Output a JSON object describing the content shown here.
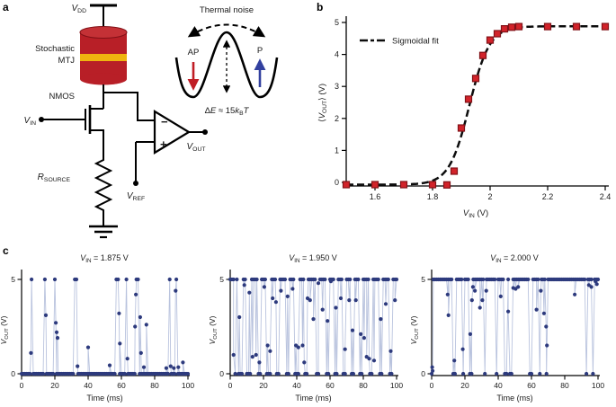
{
  "figure": {
    "panel_letters": {
      "a": "a",
      "b": "b",
      "c": "c"
    }
  },
  "panel_a": {
    "labels": {
      "vdd": {
        "main": "V",
        "sub": "DD"
      },
      "mtj_line1": "Stochastic",
      "mtj_line2": "MTJ",
      "nmos": "NMOS",
      "vin": {
        "main": "V",
        "sub": "IN"
      },
      "rsource": {
        "main": "R",
        "sub": "SOURCE"
      },
      "vref": {
        "main": "V",
        "sub": "REF"
      },
      "vout": {
        "main": "V",
        "sub": "OUT"
      },
      "comparator_minus": "−",
      "comparator_plus": "+"
    },
    "inset": {
      "title": "Thermal noise",
      "left_state": "AP",
      "right_state": "P",
      "barrier_delta": "Δ",
      "barrier_e": "E",
      "barrier_mid": " ≈ 15",
      "barrier_k": "k",
      "barrier_k_sub": "B",
      "barrier_t": "T"
    },
    "colors": {
      "mtj_red": "#b81f27",
      "mtj_red_top": "#c43136",
      "mtj_edge": "#801016",
      "mtj_gold": "#efb50f",
      "label_red": "#e11b22",
      "ap_arrow": "#c01d25",
      "p_arrow": "#32409f"
    }
  },
  "chart_data": [
    {
      "panel": "b",
      "type": "scatter",
      "xlabel_parts": [
        {
          "t": "V",
          "i": true
        },
        {
          "t": "IN",
          "sub": true
        },
        {
          "t": " (V)"
        }
      ],
      "ylabel_parts": [
        {
          "t": "⟨"
        },
        {
          "t": "V",
          "i": true
        },
        {
          "t": "OUT",
          "sub": true
        },
        {
          "t": "⟩ (V)"
        }
      ],
      "legend": "Sigmoidal fit",
      "xlim": [
        1.5,
        2.4
      ],
      "ylim": [
        -0.3,
        5.4
      ],
      "xticks": [
        1.6,
        1.8,
        2.0,
        2.2,
        2.4
      ],
      "xtick_labels": [
        "1.6",
        "1.8",
        "2",
        "2.2",
        "2.4"
      ],
      "yticks": [
        0,
        1,
        2,
        3,
        4,
        5
      ],
      "x": [
        1.5,
        1.6,
        1.7,
        1.8,
        1.85,
        1.875,
        1.9,
        1.925,
        1.95,
        1.975,
        2.0,
        2.025,
        2.05,
        2.075,
        2.1,
        2.2,
        2.3,
        2.4
      ],
      "y": [
        -0.07,
        -0.07,
        -0.07,
        -0.07,
        -0.08,
        0.35,
        1.7,
        2.6,
        3.25,
        3.97,
        4.45,
        4.65,
        4.8,
        4.85,
        4.87,
        4.87,
        4.87,
        4.87
      ],
      "fit": {
        "baseline": -0.07,
        "amplitude": 4.95,
        "x0": 1.928,
        "width": 0.035
      },
      "marker_color": "#d2232a",
      "marker_edge": "#811117",
      "fit_color": "#0d0d0d"
    },
    {
      "panel": "c1",
      "type": "line",
      "title_parts": [
        {
          "t": "V",
          "i": true
        },
        {
          "t": "IN",
          "sub": true
        },
        {
          "t": " = 1.875 V"
        }
      ],
      "xlabel": "Time (ms)",
      "ylabel_parts": [
        {
          "t": "V",
          "i": true
        },
        {
          "t": "OUT",
          "sub": true
        },
        {
          "t": " (V)"
        }
      ],
      "xlim": [
        0,
        100
      ],
      "ylim": [
        0,
        5
      ],
      "xticks": [
        0,
        20,
        40,
        60,
        80,
        100
      ],
      "yticks": [
        0,
        5
      ],
      "levels": [
        0,
        5
      ],
      "sample_interval_ms": 1,
      "intervals": [
        [
          0,
          6,
          0
        ],
        [
          6,
          7,
          5
        ],
        [
          7,
          13.5,
          0
        ],
        [
          13.5,
          14.5,
          5
        ],
        [
          14.5,
          19.5,
          0
        ],
        [
          19.5,
          20.5,
          5
        ],
        [
          20.5,
          32,
          0
        ],
        [
          32,
          33.5,
          5
        ],
        [
          33.5,
          57,
          0
        ],
        [
          57,
          58.5,
          5
        ],
        [
          58.5,
          62.5,
          0
        ],
        [
          62.5,
          63.5,
          5
        ],
        [
          63.5,
          68.5,
          0
        ],
        [
          68.5,
          71,
          5
        ],
        [
          71,
          89,
          0
        ],
        [
          89,
          90,
          5
        ],
        [
          90,
          93,
          0
        ],
        [
          93,
          93.8,
          5
        ],
        [
          93.8,
          100,
          0
        ]
      ],
      "extra_points": [
        [
          5.6,
          1.1
        ],
        [
          14.6,
          3.1
        ],
        [
          20.6,
          2.7
        ],
        [
          21.1,
          2.2
        ],
        [
          21.6,
          1.9
        ],
        [
          33.6,
          0.4
        ],
        [
          40,
          1.4
        ],
        [
          53,
          0.45
        ],
        [
          58.6,
          3.2
        ],
        [
          59.1,
          1.6
        ],
        [
          63.6,
          0.8
        ],
        [
          68.2,
          2.5
        ],
        [
          68.7,
          4.2
        ],
        [
          71.3,
          3.0
        ],
        [
          71.8,
          1.1
        ],
        [
          73.5,
          0.35
        ],
        [
          75,
          2.6
        ],
        [
          87,
          0.3
        ],
        [
          89.6,
          0.4
        ],
        [
          91.5,
          0.3
        ],
        [
          92.6,
          4.4
        ],
        [
          94.2,
          0.35
        ],
        [
          97,
          0.6
        ]
      ],
      "dot_color": "#2d3a7d",
      "line_color": "#b9c3de"
    },
    {
      "panel": "c2",
      "type": "line",
      "title_parts": [
        {
          "t": "V",
          "i": true
        },
        {
          "t": "IN",
          "sub": true
        },
        {
          "t": " = 1.950 V"
        }
      ],
      "xlabel": "Time (ms)",
      "ylabel_parts": [
        {
          "t": "V",
          "i": true
        },
        {
          "t": "OUT",
          "sub": true
        },
        {
          "t": " (V)"
        }
      ],
      "xlim": [
        0,
        100
      ],
      "ylim": [
        0,
        5
      ],
      "xticks": [
        0,
        20,
        40,
        60,
        80,
        100
      ],
      "yticks": [
        0,
        5
      ],
      "levels": [
        0,
        5
      ],
      "sample_interval_ms": 1,
      "intervals": [
        [
          0,
          3,
          5
        ],
        [
          3,
          4,
          0
        ],
        [
          4,
          5,
          5
        ],
        [
          5,
          8,
          0
        ],
        [
          8,
          10,
          5
        ],
        [
          10,
          13,
          0
        ],
        [
          13,
          17,
          5
        ],
        [
          17,
          19,
          0
        ],
        [
          19,
          22,
          5
        ],
        [
          22,
          25,
          0
        ],
        [
          25,
          28,
          5
        ],
        [
          28,
          30,
          0
        ],
        [
          30,
          34,
          5
        ],
        [
          34,
          36,
          0
        ],
        [
          36,
          39,
          5
        ],
        [
          39,
          42,
          0
        ],
        [
          42,
          45,
          5
        ],
        [
          45,
          47,
          0
        ],
        [
          47,
          52,
          5
        ],
        [
          52,
          54,
          0
        ],
        [
          54,
          58,
          5
        ],
        [
          58,
          60,
          0
        ],
        [
          60,
          63,
          5
        ],
        [
          63,
          65,
          0
        ],
        [
          65,
          68,
          5
        ],
        [
          68,
          70,
          0
        ],
        [
          70,
          73,
          5
        ],
        [
          73,
          75,
          0
        ],
        [
          75,
          78,
          5
        ],
        [
          78,
          80,
          0
        ],
        [
          80,
          84,
          5
        ],
        [
          84,
          86,
          0
        ],
        [
          86,
          90,
          5
        ],
        [
          90,
          92,
          0
        ],
        [
          92,
          96,
          5
        ],
        [
          96,
          98,
          0
        ],
        [
          98,
          100,
          5
        ]
      ],
      "extra_points": [
        [
          2,
          1.0
        ],
        [
          5.5,
          3.0
        ],
        [
          8.5,
          4.7
        ],
        [
          11.5,
          4.3
        ],
        [
          13.4,
          0.9
        ],
        [
          15.5,
          1.0
        ],
        [
          17.5,
          0.6
        ],
        [
          20.5,
          4.6
        ],
        [
          22.5,
          1.5
        ],
        [
          24,
          1.2
        ],
        [
          25.5,
          4.0
        ],
        [
          27.5,
          3.8
        ],
        [
          30.5,
          4.4
        ],
        [
          34.5,
          4.1
        ],
        [
          37.5,
          4.5
        ],
        [
          39.5,
          1.5
        ],
        [
          41,
          1.4
        ],
        [
          43.5,
          1.5
        ],
        [
          44.5,
          0.6
        ],
        [
          46.5,
          4.0
        ],
        [
          48,
          3.9
        ],
        [
          50,
          2.9
        ],
        [
          53,
          4.8
        ],
        [
          55.5,
          3.4
        ],
        [
          58.5,
          2.8
        ],
        [
          60.5,
          4.9
        ],
        [
          63.5,
          3.5
        ],
        [
          66.5,
          4.0
        ],
        [
          69,
          1.3
        ],
        [
          71.5,
          3.9
        ],
        [
          73.5,
          2.3
        ],
        [
          75.5,
          3.9
        ],
        [
          78.5,
          2.1
        ],
        [
          80.5,
          1.9
        ],
        [
          82,
          0.9
        ],
        [
          83.5,
          0.8
        ],
        [
          86.5,
          0.7
        ],
        [
          90.5,
          2.9
        ],
        [
          93.5,
          3.7
        ],
        [
          96.5,
          1.2
        ],
        [
          99,
          3.9
        ]
      ],
      "dot_color": "#2d3a7d",
      "line_color": "#b9c3de"
    },
    {
      "panel": "c3",
      "type": "line",
      "title_parts": [
        {
          "t": "V",
          "i": true
        },
        {
          "t": "IN",
          "sub": true
        },
        {
          "t": " = 2.000 V"
        }
      ],
      "xlabel": "Time (ms)",
      "ylabel_parts": [
        {
          "t": "V",
          "i": true
        },
        {
          "t": "OUT",
          "sub": true
        },
        {
          "t": " (V)"
        }
      ],
      "xlim": [
        0,
        100
      ],
      "ylim": [
        0,
        5
      ],
      "xticks": [
        0,
        20,
        40,
        60,
        80,
        100
      ],
      "yticks": [
        0,
        5
      ],
      "levels": [
        0,
        5
      ],
      "sample_interval_ms": 1,
      "intervals": [
        [
          0,
          1,
          0
        ],
        [
          1,
          13,
          5
        ],
        [
          13,
          14.5,
          0
        ],
        [
          14.5,
          18.5,
          5
        ],
        [
          18.5,
          19.5,
          0
        ],
        [
          19.5,
          23,
          5
        ],
        [
          23,
          24.5,
          0
        ],
        [
          24.5,
          31.5,
          5
        ],
        [
          31.5,
          32.5,
          0
        ],
        [
          32.5,
          38.5,
          5
        ],
        [
          38.5,
          40,
          0
        ],
        [
          40,
          44,
          5
        ],
        [
          44,
          45.5,
          0
        ],
        [
          45.5,
          47,
          5
        ],
        [
          47,
          48.5,
          0
        ],
        [
          48.5,
          59,
          5
        ],
        [
          59,
          60.5,
          0
        ],
        [
          60.5,
          64.5,
          5
        ],
        [
          64.5,
          66,
          0
        ],
        [
          66,
          68.5,
          5
        ],
        [
          68.5,
          70,
          0
        ],
        [
          70,
          92.5,
          5
        ],
        [
          92.5,
          94,
          0
        ],
        [
          94,
          97,
          5
        ],
        [
          97,
          97.8,
          0
        ],
        [
          97.8,
          100,
          5
        ]
      ],
      "extra_points": [
        [
          0.3,
          0.35
        ],
        [
          0.6,
          0.15
        ],
        [
          9.6,
          4.2
        ],
        [
          10.1,
          3.1
        ],
        [
          13.6,
          0.7
        ],
        [
          18.7,
          1.3
        ],
        [
          23.2,
          2.1
        ],
        [
          24.2,
          3.9
        ],
        [
          24.8,
          4.6
        ],
        [
          26,
          4.4
        ],
        [
          29,
          3.5
        ],
        [
          30.5,
          3.9
        ],
        [
          32.8,
          4.4
        ],
        [
          41.5,
          4.1
        ],
        [
          46,
          3.3
        ],
        [
          49,
          4.55
        ],
        [
          50.5,
          4.5
        ],
        [
          52,
          4.6
        ],
        [
          63,
          3.4
        ],
        [
          65.6,
          4.4
        ],
        [
          67.5,
          3.2
        ],
        [
          68.8,
          2.5
        ],
        [
          69.3,
          1.5
        ],
        [
          86,
          4.2
        ],
        [
          94.5,
          4.7
        ],
        [
          96,
          4.6
        ],
        [
          98.5,
          4.9
        ],
        [
          99.3,
          4.75
        ]
      ],
      "dot_color": "#2d3a7d",
      "line_color": "#b9c3de"
    }
  ]
}
